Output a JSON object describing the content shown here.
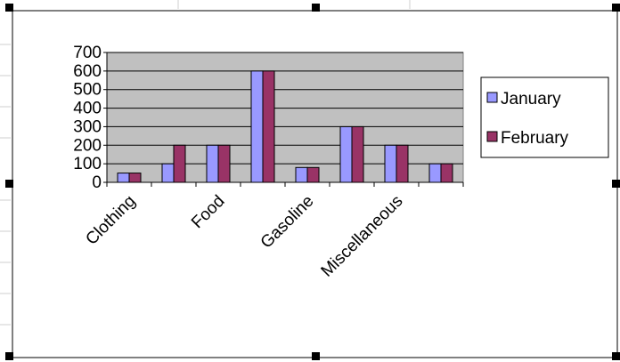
{
  "chart_data": {
    "type": "bar",
    "categories": [
      "Clothing",
      "",
      "Food",
      "",
      "Gasoline",
      "",
      "Miscellaneous",
      ""
    ],
    "series": [
      {
        "name": "January",
        "color": "#9999ff",
        "values": [
          50,
          100,
          200,
          600,
          80,
          300,
          200,
          100
        ]
      },
      {
        "name": "February",
        "color": "#993366",
        "values": [
          50,
          200,
          200,
          600,
          80,
          300,
          200,
          100
        ]
      }
    ],
    "ylim": [
      0,
      700
    ],
    "yticks": [
      "0",
      "100",
      "200",
      "300",
      "400",
      "500",
      "600",
      "700"
    ],
    "grid": true,
    "plot_background": "#c0c0c0",
    "legend_position": "right"
  }
}
